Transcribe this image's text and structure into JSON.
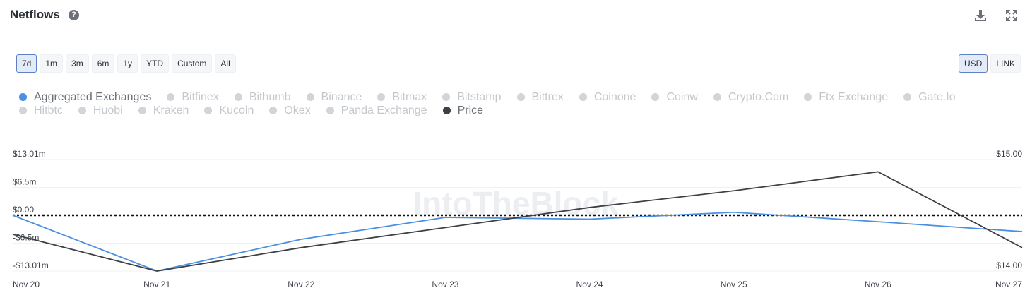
{
  "header": {
    "title": "Netflows",
    "help_icon": "?"
  },
  "toolbar": {
    "download_icon": "download-icon",
    "fullscreen_icon": "fullscreen-icon",
    "ranges": [
      "7d",
      "1m",
      "3m",
      "6m",
      "1y",
      "YTD",
      "Custom",
      "All"
    ],
    "active_range": "7d",
    "currencies": [
      "USD",
      "LINK"
    ],
    "active_currency": "USD"
  },
  "legend": [
    {
      "label": "Aggregated Exchanges",
      "active": true,
      "color": "#4a8fe0"
    },
    {
      "label": "Bitfinex",
      "active": false
    },
    {
      "label": "Bithumb",
      "active": false
    },
    {
      "label": "Binance",
      "active": false
    },
    {
      "label": "Bitmax",
      "active": false
    },
    {
      "label": "Bitstamp",
      "active": false
    },
    {
      "label": "Bittrex",
      "active": false
    },
    {
      "label": "Coinone",
      "active": false
    },
    {
      "label": "Coinw",
      "active": false
    },
    {
      "label": "Crypto.Com",
      "active": false
    },
    {
      "label": "Ftx Exchange",
      "active": false
    },
    {
      "label": "Gate.Io",
      "active": false
    },
    {
      "label": "Hitbtc",
      "active": false
    },
    {
      "label": "Huobi",
      "active": false
    },
    {
      "label": "Kraken",
      "active": false
    },
    {
      "label": "Kucoin",
      "active": false
    },
    {
      "label": "Okex",
      "active": false
    },
    {
      "label": "Panda Exchange",
      "active": false
    },
    {
      "label": "Price",
      "active": true,
      "color": "#3d4045"
    }
  ],
  "watermark": "IntoTheBlock",
  "chart_data": {
    "type": "line",
    "x": [
      "Nov 20",
      "Nov 21",
      "Nov 22",
      "Nov 23",
      "Nov 24",
      "Nov 25",
      "Nov 26",
      "Nov 27"
    ],
    "y_left": {
      "ticks": [
        "$13.01m",
        "$6.5m",
        "$0.00",
        "-$6.5m",
        "-$13.01m"
      ],
      "ylim": [
        -13.01,
        13.01
      ]
    },
    "y_right": {
      "ticks": [
        "$15.00",
        "$14.00"
      ],
      "ylim": [
        14.0,
        15.0
      ]
    },
    "zero_line": true,
    "series": [
      {
        "name": "Aggregated Exchanges",
        "axis": "left",
        "color": "#4a8fe0",
        "values": [
          0.0,
          -13.0,
          -5.6,
          -0.5,
          -0.9,
          0.7,
          -1.5,
          -3.8
        ]
      },
      {
        "name": "Price",
        "axis": "right",
        "color": "#3d4045",
        "values": [
          14.33,
          14.0,
          14.21,
          14.39,
          14.57,
          14.72,
          14.89,
          14.21
        ]
      }
    ]
  }
}
